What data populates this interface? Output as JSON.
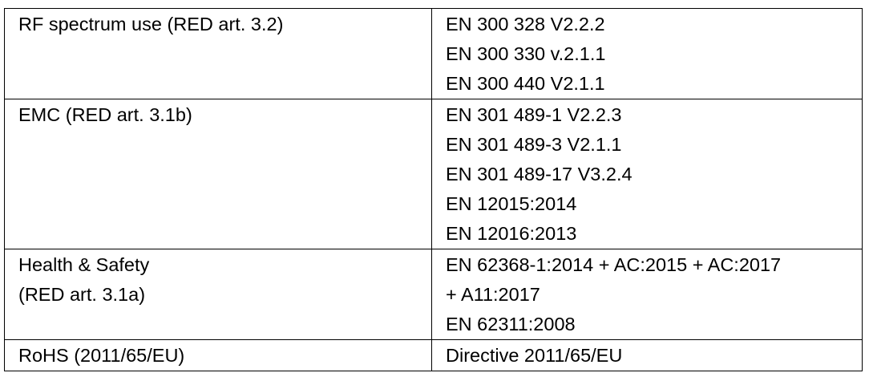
{
  "rows": [
    {
      "category": [
        "RF spectrum use (RED art. 3.2)"
      ],
      "standards": [
        "EN 300 328 V2.2.2",
        "EN 300 330 v.2.1.1",
        "EN 300 440 V2.1.1"
      ]
    },
    {
      "category": [
        "EMC (RED art. 3.1b)"
      ],
      "standards": [
        "EN 301 489-1 V2.2.3",
        "EN 301 489-3 V2.1.1",
        "EN 301 489-17 V3.2.4",
        "EN 12015:2014",
        "EN 12016:2013"
      ]
    },
    {
      "category": [
        "Health & Safety",
        "(RED art. 3.1a)"
      ],
      "standards": [
        "EN 62368-1:2014 + AC:2015 + AC:2017",
        "+ A11:2017",
        "EN 62311:2008"
      ]
    },
    {
      "category": [
        "RoHS (2011/65/EU)"
      ],
      "standards": [
        "Directive 2011/65/EU"
      ]
    }
  ]
}
